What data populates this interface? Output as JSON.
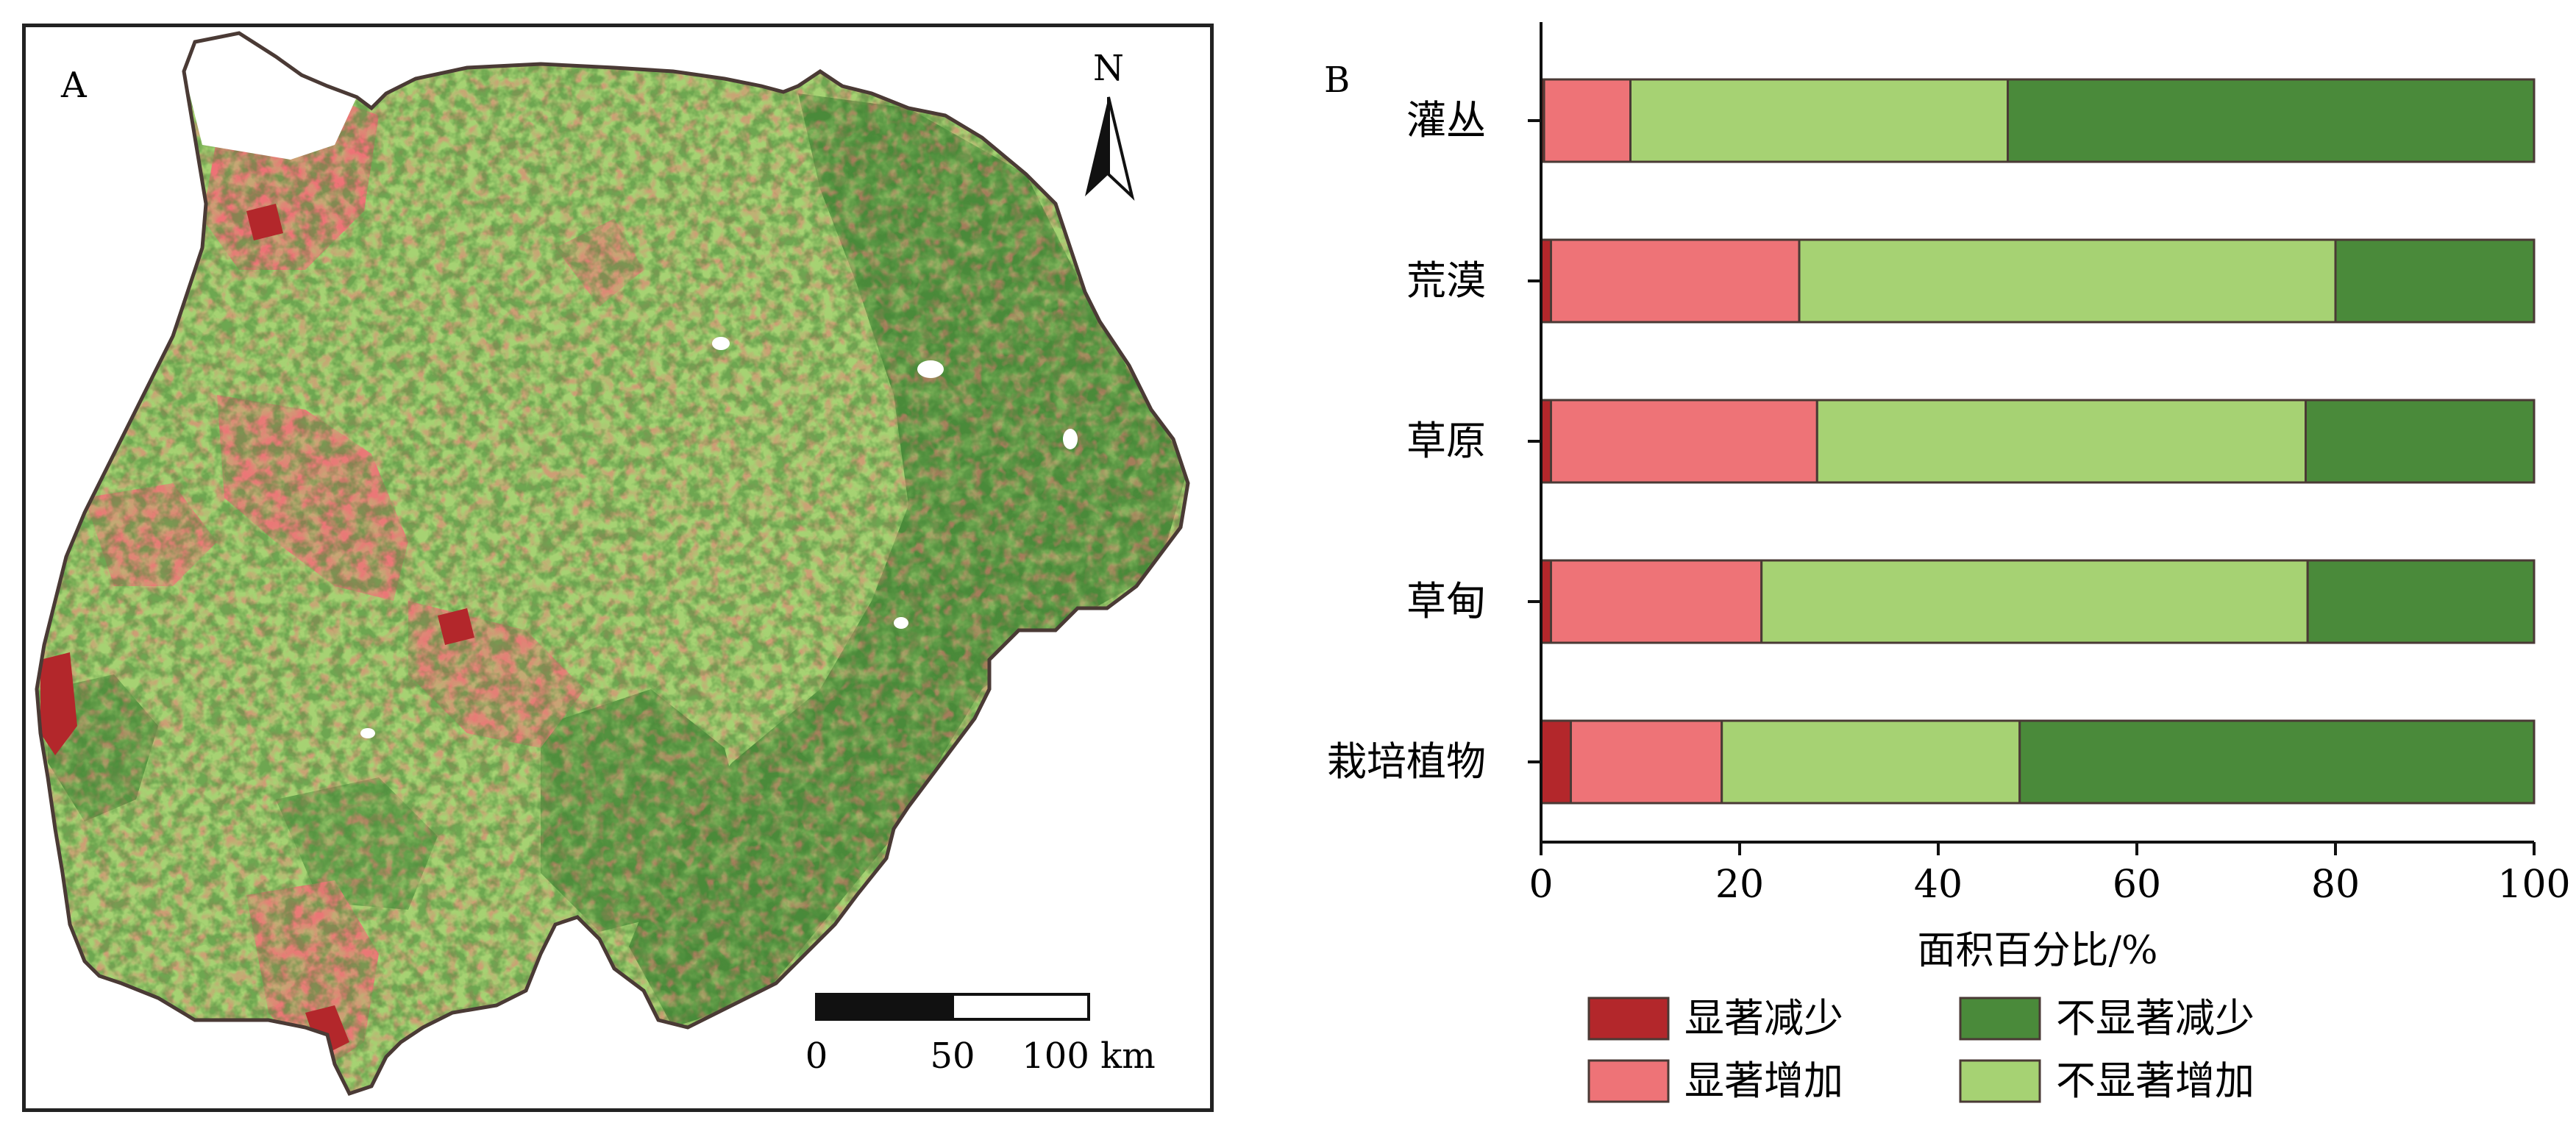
{
  "panel_a": {
    "label": "A",
    "north_label": "N",
    "scale_ticks": [
      "0",
      "50",
      "100 km"
    ]
  },
  "panel_b": {
    "label": "B"
  },
  "colors": {
    "sig_decrease": "#b3272b",
    "sig_increase": "#ee7377",
    "nonsig_decrease": "#4a8a3a",
    "nonsig_increase": "#a6d273",
    "outline": "#4a3a35"
  },
  "chart_data": {
    "type": "bar",
    "orientation": "horizontal",
    "stacked": true,
    "categories": [
      "灌丛",
      "荒漠",
      "草原",
      "草甸",
      "栽培植物"
    ],
    "series": [
      {
        "name": "显著减少",
        "values": [
          0.3,
          1.0,
          1.0,
          1.0,
          3.0
        ]
      },
      {
        "name": "显著增加",
        "values": [
          8.7,
          25.0,
          26.8,
          21.2,
          15.2
        ]
      },
      {
        "name": "不显著增加",
        "values": [
          38.0,
          54.0,
          49.2,
          55.0,
          30.0
        ]
      },
      {
        "name": "不显著减少",
        "values": [
          53.0,
          20.0,
          23.0,
          22.8,
          51.8
        ]
      }
    ],
    "legend_order": [
      "显著减少",
      "不显著减少",
      "显著增加",
      "不显著增加"
    ],
    "xlabel": "面积百分比/%",
    "xlim": [
      0,
      100
    ],
    "xticks": [
      "0",
      "20",
      "40",
      "60",
      "80",
      "100"
    ],
    "legend_position": "bottom"
  }
}
